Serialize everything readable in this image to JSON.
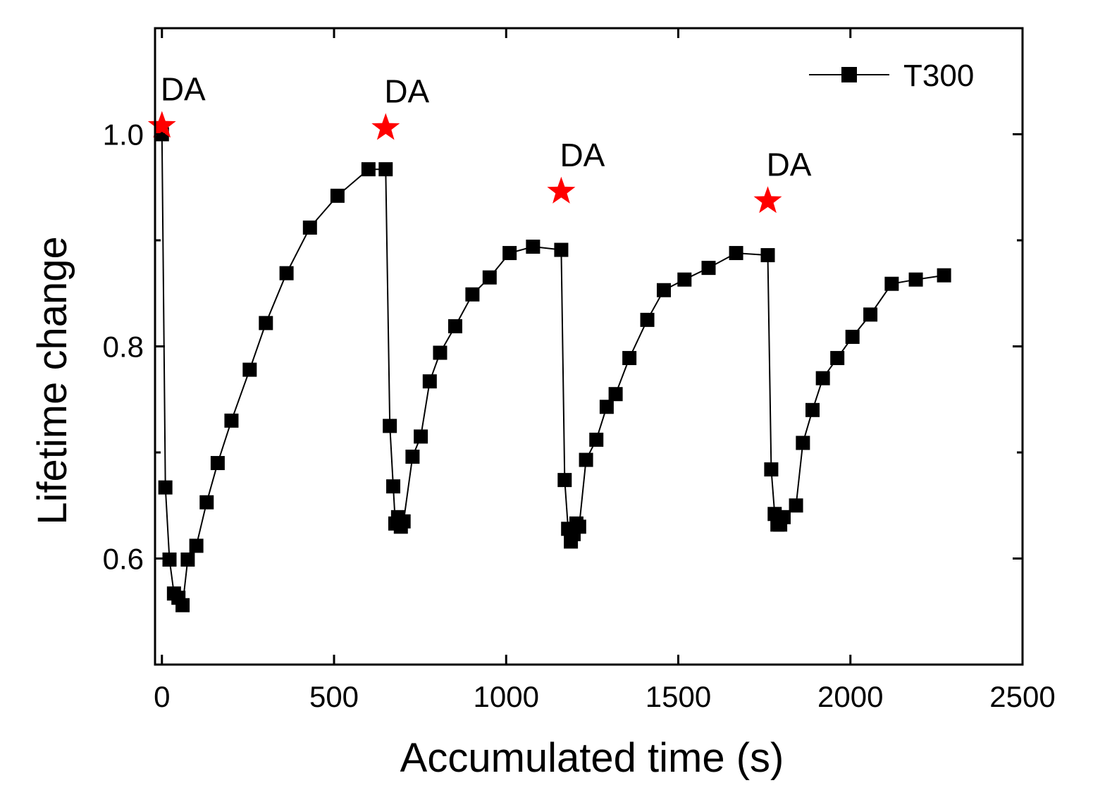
{
  "chart_data": {
    "type": "line",
    "title": "",
    "xlabel": "Accumulated time (s)",
    "ylabel": "Lifetime change",
    "xlim": [
      -20,
      2500
    ],
    "ylim": [
      0.5,
      1.1
    ],
    "xticks": [
      0,
      500,
      1000,
      1500,
      2000,
      2500
    ],
    "xtick_labels": [
      "0",
      "500",
      "1000",
      "1500",
      "2000",
      "2500"
    ],
    "yticks": [
      0.6,
      0.8,
      1.0
    ],
    "ytick_labels": [
      "0.6",
      "0.8",
      "1.0"
    ],
    "yminor_ticks": [
      0.5,
      0.7,
      0.9,
      1.1
    ],
    "grid": false,
    "legend": {
      "position": "top-right",
      "entries": [
        "T300"
      ]
    },
    "series": [
      {
        "name": "T300",
        "color": "#000000",
        "marker": "square",
        "x": [
          0,
          10,
          22,
          35,
          48,
          60,
          75,
          100,
          130,
          162,
          202,
          255,
          302,
          362,
          430,
          510,
          600,
          650,
          662,
          672,
          678,
          686,
          694,
          702,
          728,
          752,
          778,
          808,
          852,
          902,
          952,
          1010,
          1078,
          1160,
          1170,
          1180,
          1188,
          1196,
          1204,
          1212,
          1232,
          1262,
          1292,
          1318,
          1358,
          1410,
          1458,
          1518,
          1588,
          1668,
          1760,
          1770,
          1780,
          1788,
          1796,
          1806,
          1842,
          1862,
          1890,
          1920,
          1962,
          2006,
          2058,
          2120,
          2190,
          2272
        ],
        "y": [
          1.0,
          0.667,
          0.599,
          0.567,
          0.563,
          0.556,
          0.599,
          0.612,
          0.653,
          0.69,
          0.73,
          0.778,
          0.822,
          0.869,
          0.912,
          0.942,
          0.967,
          0.967,
          0.725,
          0.668,
          0.633,
          0.639,
          0.63,
          0.635,
          0.696,
          0.715,
          0.767,
          0.794,
          0.819,
          0.849,
          0.865,
          0.888,
          0.894,
          0.891,
          0.674,
          0.628,
          0.616,
          0.623,
          0.633,
          0.63,
          0.693,
          0.712,
          0.743,
          0.755,
          0.789,
          0.825,
          0.853,
          0.863,
          0.874,
          0.888,
          0.886,
          0.684,
          0.642,
          0.632,
          0.632,
          0.639,
          0.65,
          0.709,
          0.74,
          0.77,
          0.789,
          0.809,
          0.83,
          0.859,
          0.863,
          0.867
        ]
      }
    ],
    "annotations": [
      {
        "text": "DA",
        "x": 0,
        "y": 1.008,
        "marker": "star",
        "color": "#ff0000"
      },
      {
        "text": "DA",
        "x": 650,
        "y": 1.006,
        "marker": "star",
        "color": "#ff0000"
      },
      {
        "text": "DA",
        "x": 1160,
        "y": 0.946,
        "marker": "star",
        "color": "#ff0000"
      },
      {
        "text": "DA",
        "x": 1760,
        "y": 0.937,
        "marker": "star",
        "color": "#ff0000"
      }
    ]
  }
}
